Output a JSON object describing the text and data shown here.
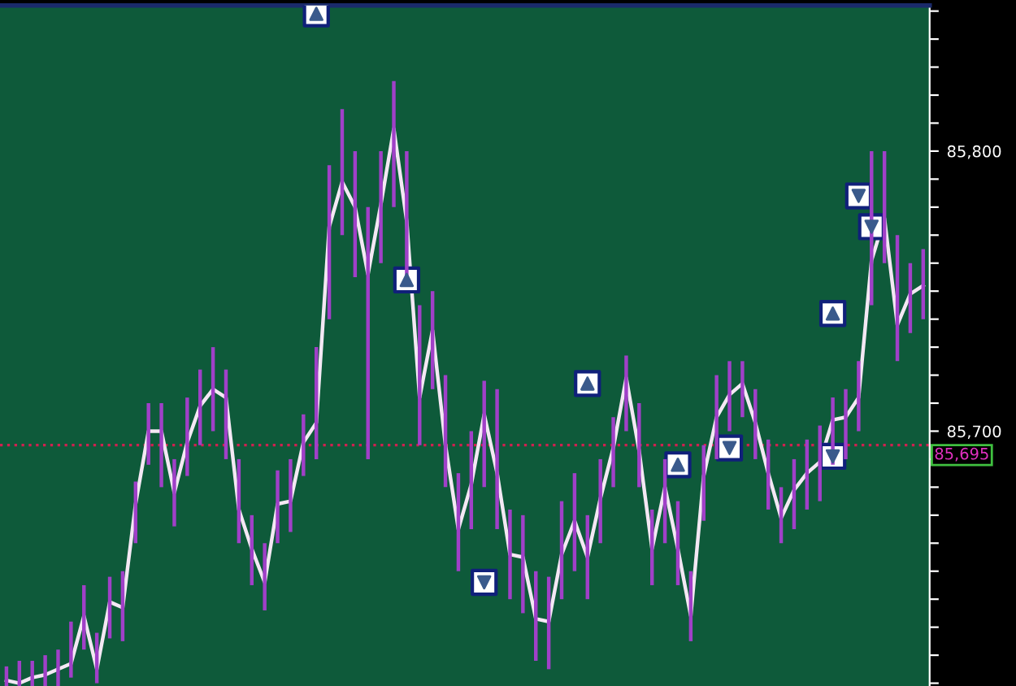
{
  "chart_data": {
    "type": "line",
    "categories": [
      null,
      null,
      null,
      null,
      null,
      null,
      null,
      null,
      null,
      null,
      null,
      null,
      null,
      null,
      null,
      null,
      null,
      null,
      null,
      null,
      null,
      null,
      null,
      null,
      null,
      null,
      null,
      null,
      null,
      null,
      null,
      null,
      null,
      null,
      null,
      null,
      null,
      null,
      null,
      null,
      null,
      null,
      null,
      null,
      null,
      null,
      null,
      null,
      null,
      null,
      null,
      null,
      null,
      null,
      null,
      null,
      null,
      null,
      null,
      null,
      null,
      null,
      null,
      null,
      null,
      null,
      null,
      null,
      null,
      null,
      null,
      null
    ],
    "series": [
      {
        "type": "bar",
        "color": "#a040c8",
        "base": [
          85609,
          85609,
          85609,
          85609,
          85609,
          85612,
          85622,
          85610,
          85626,
          85625,
          85660,
          85688,
          85680,
          85666,
          85684,
          85695,
          85700,
          85690,
          85660,
          85645,
          85636,
          85660,
          85664,
          85684,
          85690,
          85740,
          85770,
          85755,
          85690,
          85760,
          85780,
          85755,
          85695,
          85715,
          85680,
          85650,
          85665,
          85680,
          85665,
          85640,
          85635,
          85618,
          85615,
          85640,
          85650,
          85640,
          85660,
          85680,
          85700,
          85680,
          85645,
          85660,
          85645,
          85625,
          85668,
          85690,
          85700,
          85705,
          85690,
          85672,
          85660,
          85665,
          85672,
          85675,
          85688,
          85690,
          85700,
          85745,
          85760,
          85725,
          85735,
          85740
        ],
        "values": [
          7,
          9,
          9,
          11,
          13,
          20,
          23,
          18,
          22,
          25,
          22,
          22,
          30,
          24,
          28,
          27,
          30,
          32,
          30,
          25,
          24,
          26,
          26,
          22,
          40,
          55,
          45,
          45,
          90,
          40,
          45,
          45,
          50,
          35,
          40,
          35,
          35,
          38,
          50,
          32,
          35,
          32,
          33,
          35,
          35,
          30,
          30,
          25,
          27,
          30,
          27,
          30,
          30,
          25,
          27,
          30,
          25,
          20,
          25,
          25,
          20,
          25,
          25,
          27,
          24,
          25,
          25,
          55,
          40,
          45,
          25,
          25
        ]
      },
      {
        "color": "#f4e8f4",
        "values": [
          85611,
          85610,
          85612,
          85613,
          85615,
          85617,
          85634,
          85615,
          85639,
          85637,
          85674,
          85700,
          85700,
          85678,
          85696,
          85709,
          85715,
          85712,
          85672,
          85658,
          85646,
          85674,
          85675,
          85696,
          85703,
          85773,
          85789,
          85780,
          85756,
          85781,
          85808,
          85775,
          85712,
          85736,
          85695,
          85665,
          85681,
          85706,
          85685,
          85656,
          85655,
          85633,
          85632,
          85656,
          85668,
          85655,
          85676,
          85694,
          85719,
          85693,
          85658,
          85680,
          85658,
          85634,
          85684,
          85705,
          85713,
          85717,
          85703,
          85685,
          85669,
          85679,
          85685,
          85689,
          85704,
          85705,
          85712,
          85761,
          85776,
          85738,
          85749,
          85752
        ]
      },
      {
        "type": "scatter",
        "marker": "triangle",
        "color": "#3a5a8c",
        "values": [
          null,
          null,
          null,
          null,
          null,
          null,
          null,
          null,
          null,
          null,
          null,
          null,
          null,
          null,
          null,
          null,
          null,
          null,
          null,
          null,
          null,
          null,
          null,
          null,
          85849,
          null,
          null,
          null,
          null,
          null,
          null,
          85754,
          null,
          null,
          null,
          null,
          null,
          null,
          null,
          null,
          null,
          null,
          null,
          null,
          null,
          85717,
          null,
          null,
          null,
          null,
          null,
          null,
          85688,
          null,
          null,
          null,
          null,
          null,
          null,
          null,
          null,
          null,
          null,
          null,
          85742,
          null,
          null,
          null,
          null,
          null,
          null,
          null
        ]
      },
      {
        "type": "scatter",
        "marker": "triangle_down",
        "color": "#3a5a8c",
        "values": [
          null,
          null,
          null,
          null,
          null,
          null,
          null,
          null,
          null,
          null,
          null,
          null,
          null,
          null,
          null,
          null,
          null,
          null,
          null,
          null,
          null,
          null,
          null,
          null,
          null,
          null,
          null,
          null,
          null,
          null,
          null,
          null,
          null,
          null,
          null,
          null,
          null,
          85646,
          null,
          null,
          null,
          null,
          null,
          null,
          null,
          null,
          null,
          null,
          null,
          null,
          null,
          null,
          null,
          null,
          null,
          null,
          85694,
          null,
          null,
          null,
          null,
          null,
          null,
          null,
          85691,
          null,
          85784,
          85773,
          null,
          null,
          null,
          null
        ]
      }
    ],
    "ylim": [
      85609,
      85852
    ],
    "yticks": [
      {
        "value": 85610,
        "label": null
      },
      {
        "value": 85620,
        "label": null
      },
      {
        "value": 85630,
        "label": null
      },
      {
        "value": 85640,
        "label": null
      },
      {
        "value": 85650,
        "label": null
      },
      {
        "value": 85660,
        "label": null
      },
      {
        "value": 85670,
        "label": null
      },
      {
        "value": 85680,
        "label": null
      },
      {
        "value": 85690,
        "label": null
      },
      {
        "value": 85700,
        "label": "85,700"
      },
      {
        "value": 85710,
        "label": null
      },
      {
        "value": 85720,
        "label": null
      },
      {
        "value": 85730,
        "label": null
      },
      {
        "value": 85740,
        "label": null
      },
      {
        "value": 85750,
        "label": null
      },
      {
        "value": 85760,
        "label": null
      },
      {
        "value": 85770,
        "label": null
      },
      {
        "value": 85780,
        "label": null
      },
      {
        "value": 85790,
        "label": null
      },
      {
        "value": 85800,
        "label": "85,800"
      },
      {
        "value": 85810,
        "label": null
      },
      {
        "value": 85820,
        "label": null
      },
      {
        "value": 85830,
        "label": null
      },
      {
        "value": 85840,
        "label": null
      },
      {
        "value": 85850,
        "label": null
      }
    ],
    "ref_lines": [
      {
        "axis": "y",
        "value": 85695,
        "label": "85,695",
        "color": "#d02050",
        "line_style": "dotted"
      }
    ],
    "tick_labels": "y",
    "grid": false,
    "legend": false
  }
}
